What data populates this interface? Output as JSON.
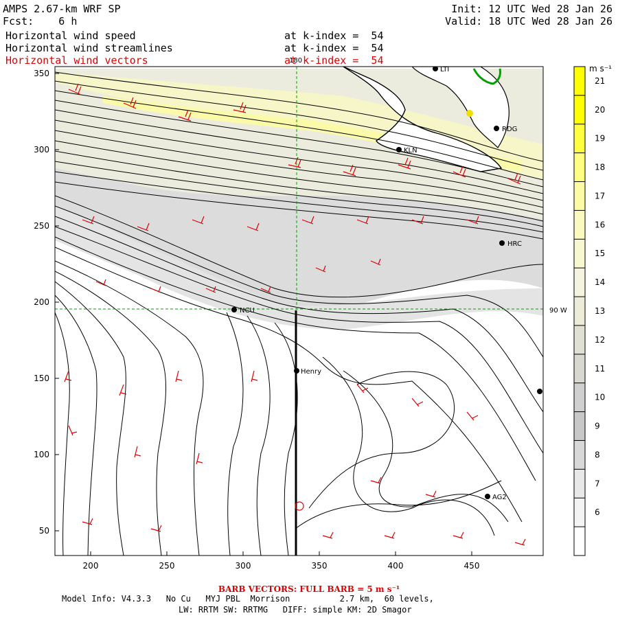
{
  "header": {
    "title": "AMPS 2.67-km WRF SP",
    "fcst_label": "Fcst:",
    "fcst_value": "6 h",
    "init": "Init: 12 UTC Wed 28 Jan 26",
    "valid": "Valid: 18 UTC Wed 28 Jan 26",
    "fields": [
      {
        "name": "Horizontal wind speed",
        "level": "at k-index =  54",
        "color": "#000000"
      },
      {
        "name": "Horizontal wind streamlines",
        "level": "at k-index =  54",
        "color": "#000000"
      },
      {
        "name": "Horizontal wind vectors",
        "level": "at k-index =  54",
        "color": "#e00000"
      }
    ]
  },
  "map": {
    "x_ticks": [
      "200",
      "250",
      "300",
      "350",
      "400",
      "450"
    ],
    "y_ticks": [
      "350",
      "300",
      "250",
      "200",
      "150",
      "100",
      "50"
    ],
    "meridian_label": "180",
    "parallel_label": "90 W",
    "stations": [
      {
        "name": "KLN"
      },
      {
        "name": "RDG"
      },
      {
        "name": "HRC"
      },
      {
        "name": "NCU"
      },
      {
        "name": "Henry"
      },
      {
        "name": "AG2"
      },
      {
        "name": "LTI"
      }
    ]
  },
  "colorbar": {
    "unit": "m s⁻¹",
    "labels": [
      "21",
      "20",
      "19",
      "18",
      "17",
      "16",
      "15",
      "14",
      "13",
      "12",
      "11",
      "10",
      "9",
      "8",
      "7",
      "6"
    ],
    "colors": [
      "#ffff00",
      "#ffff00",
      "#ffff40",
      "#fefe80",
      "#fbfba4",
      "#fafac0",
      "#f8f8d0",
      "#f4f4e0",
      "#ececd8",
      "#e0e0d4",
      "#d8d8d0",
      "#d0d0d0",
      "#c8c8c8",
      "#d8d8d8",
      "#e8e8e8",
      "#f4f4f4",
      "#ffffff"
    ]
  },
  "footer": {
    "barb_text": "BARB VECTORS:  FULL BARB = 5 m s⁻¹",
    "model_line1": "Model Info: V4.3.3   No Cu   MYJ PBL  Morrison          2.7 km,  60 levels,",
    "model_line2": "LW: RRTM SW: RRTMG   DIFF: simple KM: 2D Smagor"
  }
}
